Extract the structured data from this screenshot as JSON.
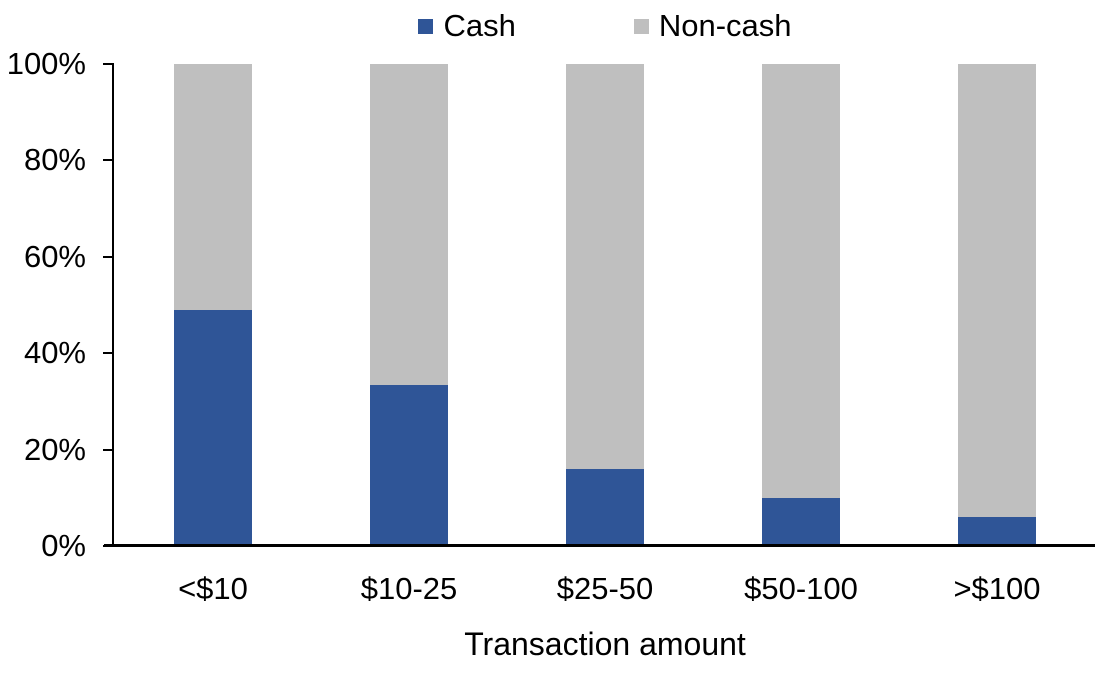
{
  "chart_data": {
    "type": "bar",
    "stacked": true,
    "percent_stacked": true,
    "title": "",
    "xlabel": "Transaction amount",
    "ylabel": "",
    "categories": [
      "<$10",
      "$10-25",
      "$25-50",
      "$50-100",
      ">$100"
    ],
    "series": [
      {
        "name": "Cash",
        "color": "#2F5597",
        "values": [
          49,
          33.5,
          16,
          10,
          6
        ]
      },
      {
        "name": "Non-cash",
        "color": "#BFBFBF",
        "values": [
          51,
          66.5,
          84,
          90,
          94
        ]
      }
    ],
    "ylim": [
      0,
      100
    ],
    "yticks": [
      "0%",
      "20%",
      "40%",
      "60%",
      "80%",
      "100%"
    ],
    "legend_position": "top",
    "grid": false,
    "axis_color": "#000000",
    "text_color": "#000000"
  }
}
